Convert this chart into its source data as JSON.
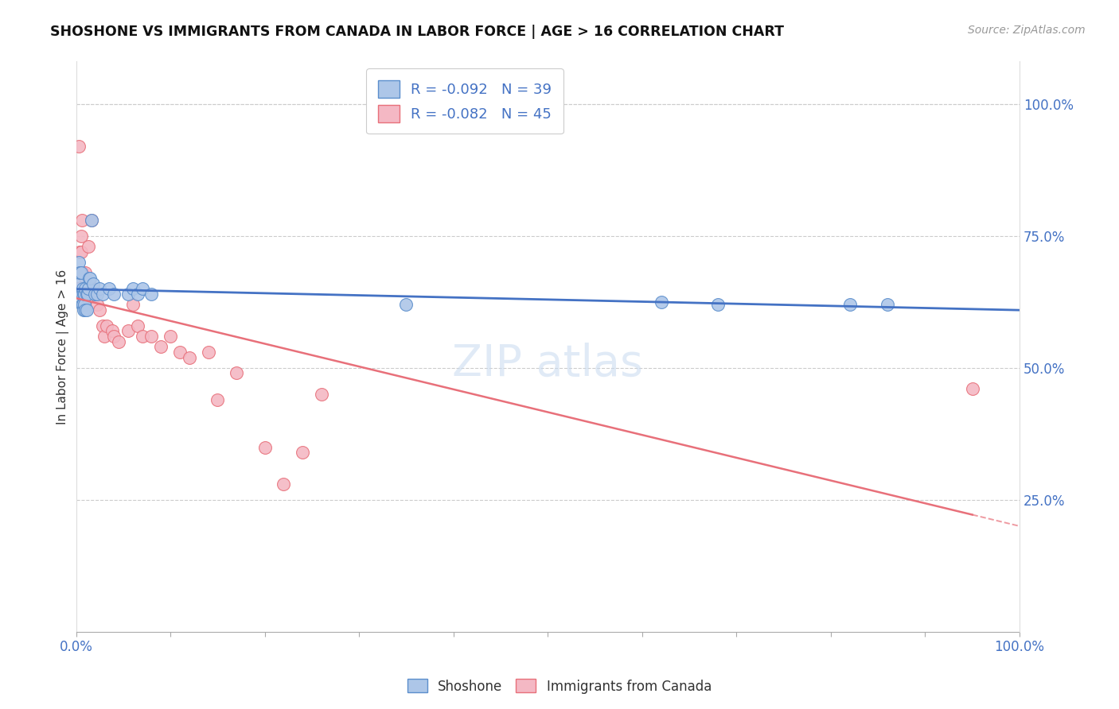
{
  "title": "SHOSHONE VS IMMIGRANTS FROM CANADA IN LABOR FORCE | AGE > 16 CORRELATION CHART",
  "source": "Source: ZipAtlas.com",
  "ylabel": "In Labor Force | Age > 16",
  "xlim": [
    0.0,
    1.0
  ],
  "ylim": [
    0.0,
    1.08
  ],
  "right_ytick_positions": [
    0.25,
    0.5,
    0.75,
    1.0
  ],
  "shoshone_color": "#adc6e8",
  "canada_color": "#f4b8c4",
  "shoshone_edge_color": "#5b8ecc",
  "canada_edge_color": "#e8707a",
  "shoshone_line_color": "#4472c4",
  "canada_line_color": "#e8707a",
  "shoshone_x": [
    0.003,
    0.004,
    0.004,
    0.005,
    0.005,
    0.006,
    0.006,
    0.007,
    0.007,
    0.008,
    0.008,
    0.009,
    0.009,
    0.01,
    0.01,
    0.011,
    0.011,
    0.012,
    0.013,
    0.014,
    0.015,
    0.016,
    0.018,
    0.02,
    0.022,
    0.025,
    0.028,
    0.035,
    0.04,
    0.055,
    0.06,
    0.065,
    0.07,
    0.08,
    0.35,
    0.62,
    0.68,
    0.82,
    0.86
  ],
  "shoshone_y": [
    0.7,
    0.66,
    0.68,
    0.64,
    0.68,
    0.62,
    0.64,
    0.62,
    0.65,
    0.61,
    0.64,
    0.62,
    0.64,
    0.61,
    0.65,
    0.61,
    0.64,
    0.64,
    0.65,
    0.67,
    0.67,
    0.78,
    0.66,
    0.64,
    0.64,
    0.65,
    0.64,
    0.65,
    0.64,
    0.64,
    0.65,
    0.64,
    0.65,
    0.64,
    0.62,
    0.625,
    0.62,
    0.62,
    0.62
  ],
  "canada_x": [
    0.002,
    0.003,
    0.004,
    0.004,
    0.005,
    0.005,
    0.006,
    0.007,
    0.007,
    0.008,
    0.009,
    0.01,
    0.01,
    0.011,
    0.012,
    0.013,
    0.015,
    0.016,
    0.018,
    0.02,
    0.022,
    0.025,
    0.028,
    0.03,
    0.032,
    0.038,
    0.04,
    0.045,
    0.055,
    0.06,
    0.065,
    0.07,
    0.08,
    0.09,
    0.1,
    0.11,
    0.12,
    0.14,
    0.15,
    0.17,
    0.2,
    0.22,
    0.24,
    0.26,
    0.95
  ],
  "canada_y": [
    0.65,
    0.92,
    0.68,
    0.72,
    0.75,
    0.72,
    0.78,
    0.64,
    0.68,
    0.65,
    0.62,
    0.68,
    0.67,
    0.65,
    0.65,
    0.73,
    0.65,
    0.78,
    0.65,
    0.64,
    0.62,
    0.61,
    0.58,
    0.56,
    0.58,
    0.57,
    0.56,
    0.55,
    0.57,
    0.62,
    0.58,
    0.56,
    0.56,
    0.54,
    0.56,
    0.53,
    0.52,
    0.53,
    0.44,
    0.49,
    0.35,
    0.28,
    0.34,
    0.45,
    0.46
  ]
}
